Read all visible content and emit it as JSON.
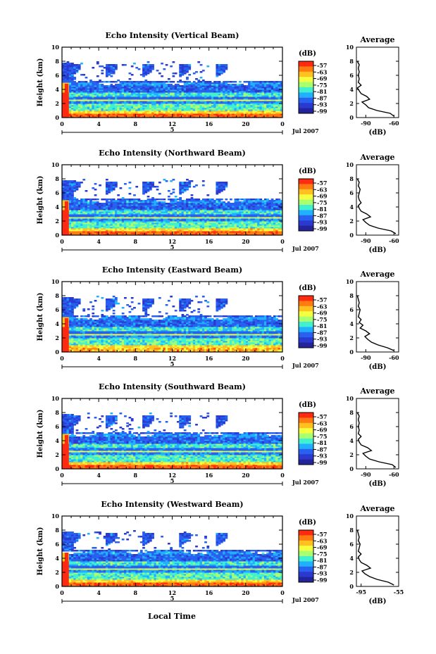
{
  "page": {
    "xlabel_bottom": "Local Time"
  },
  "colorbar": {
    "unit_label": "(dB)",
    "ticks": [
      "-57",
      "-63",
      "-69",
      "-75",
      "-81",
      "-87",
      "-93",
      "-99"
    ],
    "colors": [
      "#ff2a10",
      "#ff7a10",
      "#ffc020",
      "#f4ff40",
      "#a8ff70",
      "#40f0d0",
      "#20b0ff",
      "#2860f0",
      "#2a3ad0",
      "#24249a"
    ]
  },
  "chart_data": [
    {
      "type": "heatmap",
      "title": "Echo Intensity (Vertical Beam)",
      "ylabel": "Height (km)",
      "ylim": [
        0,
        10
      ],
      "y_ticks": [
        "0",
        "2",
        "4",
        "6",
        "8",
        "10"
      ],
      "xlim": [
        0,
        24
      ],
      "x_ticks": [
        "0",
        "4",
        "8",
        "12",
        "16",
        "20",
        "0"
      ],
      "date_label": "5",
      "date_suffix": "Jul 2007",
      "profile": {
        "title": "Average",
        "xlabel": "(dB)",
        "x_ticks": [
          "-90",
          "-60"
        ],
        "xlim": [
          -100,
          -55
        ],
        "y_ticks": [
          "0",
          "2",
          "4",
          "6",
          "8",
          "10"
        ],
        "heights": [
          0.2,
          0.6,
          1.0,
          1.4,
          1.8,
          2.2,
          2.6,
          3.0,
          3.4,
          3.8,
          4.2,
          4.6,
          5.0,
          5.5,
          6.0,
          6.5,
          7.0,
          7.5,
          8.0
        ],
        "values": [
          -60,
          -64,
          -78,
          -87,
          -90,
          -94,
          -86,
          -89,
          -95,
          -97,
          -99,
          -95,
          -98,
          -97,
          -98,
          -97,
          -98,
          -97,
          -99
        ]
      }
    },
    {
      "type": "heatmap",
      "title": "Echo Intensity (Northward Beam)",
      "ylabel": "Height (km)",
      "ylim": [
        0,
        10
      ],
      "y_ticks": [
        "0",
        "2",
        "4",
        "6",
        "8",
        "10"
      ],
      "xlim": [
        0,
        24
      ],
      "x_ticks": [
        "0",
        "4",
        "8",
        "12",
        "16",
        "20",
        "0"
      ],
      "date_label": "5",
      "date_suffix": "Jul 2007",
      "profile": {
        "title": "Average",
        "xlabel": "(dB)",
        "x_ticks": [
          "-90",
          "-60"
        ],
        "xlim": [
          -100,
          -55
        ],
        "y_ticks": [
          "0",
          "2",
          "4",
          "6",
          "8",
          "10"
        ],
        "heights": [
          0.2,
          0.6,
          1.0,
          1.4,
          1.8,
          2.2,
          2.6,
          3.0,
          3.4,
          3.8,
          4.2,
          4.6,
          5.0,
          5.5,
          6.0,
          6.5,
          7.0,
          7.5,
          8.0
        ],
        "values": [
          -58,
          -63,
          -77,
          -86,
          -90,
          -93,
          -85,
          -89,
          -95,
          -97,
          -98,
          -95,
          -97,
          -98,
          -97,
          -96,
          -98,
          -97,
          -99
        ]
      }
    },
    {
      "type": "heatmap",
      "title": "Echo Intensity (Eastward Beam)",
      "ylabel": "Height (km)",
      "ylim": [
        0,
        10
      ],
      "y_ticks": [
        "0",
        "2",
        "4",
        "6",
        "8",
        "10"
      ],
      "xlim": [
        0,
        24
      ],
      "x_ticks": [
        "0",
        "4",
        "8",
        "12",
        "16",
        "20",
        "0"
      ],
      "date_label": "5",
      "date_suffix": "Jul 2007",
      "profile": {
        "title": "Average",
        "xlabel": "(dB)",
        "x_ticks": [
          "-90",
          "-60"
        ],
        "xlim": [
          -100,
          -55
        ],
        "y_ticks": [
          "0",
          "2",
          "4",
          "6",
          "8",
          "10"
        ],
        "heights": [
          0.2,
          0.6,
          1.0,
          1.4,
          1.8,
          2.2,
          2.6,
          3.0,
          3.4,
          3.8,
          4.2,
          4.6,
          5.0,
          5.5,
          6.0,
          6.5,
          7.0,
          7.5,
          8.0
        ],
        "values": [
          -60,
          -67,
          -77,
          -84,
          -88,
          -91,
          -86,
          -90,
          -96,
          -93,
          -97,
          -95,
          -98,
          -97,
          -96,
          -98,
          -97,
          -98,
          -99
        ]
      }
    },
    {
      "type": "heatmap",
      "title": "Echo Intensity (Southward Beam)",
      "ylabel": "Height (km)",
      "ylim": [
        0,
        10
      ],
      "y_ticks": [
        "0",
        "2",
        "4",
        "6",
        "8",
        "10"
      ],
      "xlim": [
        0,
        24
      ],
      "x_ticks": [
        "0",
        "4",
        "8",
        "12",
        "16",
        "20",
        "0"
      ],
      "date_label": "5",
      "date_suffix": "Jul 2007",
      "profile": {
        "title": "Average",
        "xlabel": "(dB)",
        "x_ticks": [
          "-90",
          "-60"
        ],
        "xlim": [
          -100,
          -55
        ],
        "y_ticks": [
          "0",
          "2",
          "4",
          "6",
          "8",
          "10"
        ],
        "heights": [
          0.2,
          0.6,
          1.0,
          1.4,
          1.8,
          2.2,
          2.6,
          3.0,
          3.4,
          3.8,
          4.2,
          4.6,
          5.0,
          5.5,
          6.0,
          6.5,
          7.0,
          7.5,
          8.0
        ],
        "values": [
          -58,
          -62,
          -76,
          -86,
          -90,
          -93,
          -84,
          -88,
          -95,
          -97,
          -98,
          -95,
          -98,
          -97,
          -98,
          -97,
          -98,
          -97,
          -99
        ]
      }
    },
    {
      "type": "heatmap",
      "title": "Echo Intensity (Westward Beam)",
      "ylabel": "Height (km)",
      "ylim": [
        0,
        10
      ],
      "y_ticks": [
        "0",
        "2",
        "4",
        "6",
        "8",
        "10"
      ],
      "xlim": [
        0,
        24
      ],
      "x_ticks": [
        "0",
        "4",
        "8",
        "12",
        "16",
        "20",
        "0"
      ],
      "date_label": "5",
      "date_suffix": "Jul 2007",
      "profile": {
        "title": "Average",
        "xlabel": "(dB)",
        "x_ticks": [
          "-95",
          "-55"
        ],
        "xlim": [
          -100,
          -55
        ],
        "y_ticks": [
          "0",
          "2",
          "4",
          "6",
          "8",
          "10"
        ],
        "heights": [
          0.2,
          0.6,
          1.0,
          1.4,
          1.8,
          2.2,
          2.6,
          3.0,
          3.4,
          3.8,
          4.2,
          4.6,
          5.0,
          5.5,
          6.0,
          6.5,
          7.0,
          7.5,
          8.0
        ],
        "values": [
          -60,
          -66,
          -78,
          -86,
          -91,
          -94,
          -85,
          -89,
          -95,
          -97,
          -98,
          -95,
          -98,
          -97,
          -96,
          -98,
          -97,
          -98,
          -99
        ]
      }
    }
  ]
}
